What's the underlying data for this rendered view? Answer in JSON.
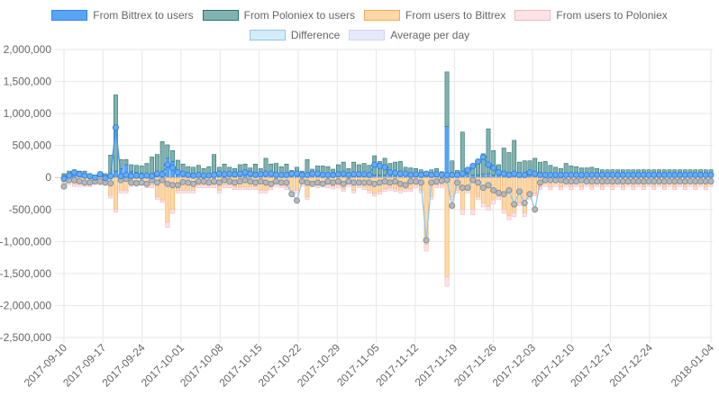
{
  "legend": [
    {
      "label": "From Bittrex to users",
      "fill": "#5aa4f5",
      "stroke": "#2f86e6"
    },
    {
      "label": "From Poloniex to users",
      "fill": "#7fb3b1",
      "stroke": "#2f6f6a"
    },
    {
      "label": "From users to Bittrex",
      "fill": "#fdd8a8",
      "stroke": "#f3a955"
    },
    {
      "label": "From users to Poloniex",
      "fill": "#fde3e5",
      "stroke": "#f2b7bd"
    },
    {
      "label": "Difference",
      "fill": "#d4ebf8",
      "stroke": "#8ec8ea"
    },
    {
      "label": "Average per day",
      "fill": "#e6e9fa",
      "stroke": "#d0d5f2"
    }
  ],
  "chart_data": {
    "type": "bar",
    "title": "",
    "xlabel": "",
    "ylabel": "",
    "ylim": [
      -2500000,
      2000000
    ],
    "y_ticks": [
      "2,000,000",
      "1,500,000",
      "1,000,000",
      "500,000",
      "0",
      "-500,000",
      "-1,000,000",
      "-1,500,000",
      "-2,000,000",
      "-2,500,000"
    ],
    "y_tick_values": [
      2000000,
      1500000,
      1000000,
      500000,
      0,
      -500000,
      -1000000,
      -1500000,
      -2000000,
      -2500000
    ],
    "x_ticks": [
      "2017-09-10",
      "2017-09-17",
      "2017-09-24",
      "2017-10-01",
      "2017-10-08",
      "2017-10-15",
      "2017-10-22",
      "2017-10-29",
      "2017-11-05",
      "2017-11-12",
      "2017-11-19",
      "2017-11-26",
      "2017-12-03",
      "2017-12-10",
      "2017-12-17",
      "2017-12-24",
      "2018-01-04"
    ],
    "x_tick_days": [
      0,
      7,
      14,
      21,
      28,
      35,
      42,
      49,
      56,
      63,
      70,
      77,
      84,
      91,
      98,
      105,
      116
    ],
    "grid": true,
    "legend_position": "top",
    "colors": {
      "bittrex_out": "#5aa4f5",
      "poloniex_out": "#7fb3b1",
      "to_bittrex": "#fdd8a8",
      "to_poloniex": "#fde3e5",
      "difference_line": "#8ec8ea",
      "difference_point": "#a9aeb3",
      "average_point": "#3d8fe8"
    },
    "series": [
      {
        "name": "From Bittrex to users",
        "values": [
          30000,
          50000,
          60000,
          40000,
          40000,
          30000,
          20000,
          40000,
          30000,
          50000,
          100000,
          140000,
          200000,
          90000,
          80000,
          70000,
          60000,
          60000,
          80000,
          100000,
          300000,
          250000,
          90000,
          70000,
          70000,
          50000,
          40000,
          40000,
          50000,
          40000,
          40000,
          70000,
          40000,
          40000,
          50000,
          50000,
          50000,
          40000,
          40000,
          40000,
          50000,
          60000,
          60000,
          50000,
          40000,
          40000,
          40000,
          30000,
          40000,
          70000,
          40000,
          40000,
          40000,
          40000,
          40000,
          40000,
          80000,
          40000,
          40000,
          40000,
          40000,
          40000,
          40000,
          40000,
          40000,
          80000,
          80000,
          60000,
          40000,
          30000,
          30000,
          30000,
          40000,
          30000,
          800000,
          80000,
          50000,
          60000,
          60000,
          40000,
          40000,
          50000,
          60000,
          40000,
          40000,
          40000,
          40000,
          40000,
          40000,
          40000,
          40000,
          40000,
          80000,
          60000,
          40000,
          40000,
          40000,
          40000,
          40000,
          40000,
          70000,
          60000,
          50000,
          80000,
          60000,
          60000,
          60000,
          60000,
          60000,
          60000,
          60000,
          60000,
          60000,
          60000,
          60000,
          60000,
          60000,
          60000,
          60000,
          60000,
          60000,
          60000,
          60000,
          60000,
          60000,
          60000
        ]
      },
      {
        "name": "From Poloniex to users",
        "values": [
          30000,
          50000,
          60000,
          60000,
          60000,
          30000,
          20000,
          50000,
          30000,
          300000,
          1190000,
          140000,
          80000,
          110000,
          110000,
          110000,
          160000,
          260000,
          280000,
          460000,
          210000,
          170000,
          180000,
          140000,
          100000,
          110000,
          150000,
          100000,
          120000,
          320000,
          120000,
          140000,
          120000,
          100000,
          150000,
          160000,
          100000,
          170000,
          100000,
          260000,
          160000,
          160000,
          110000,
          160000,
          70000,
          120000,
          60000,
          250000,
          90000,
          110000,
          140000,
          130000,
          90000,
          160000,
          200000,
          100000,
          160000,
          160000,
          180000,
          150000,
          300000,
          210000,
          260000,
          180000,
          200000,
          170000,
          80000,
          90000,
          100000,
          90000,
          60000,
          90000,
          100000,
          60000,
          850000,
          180000,
          60000,
          650000,
          70000,
          130000,
          230000,
          320000,
          700000,
          380000,
          160000,
          420000,
          350000,
          540000,
          200000,
          220000,
          220000,
          260000,
          160000,
          190000,
          150000,
          120000,
          100000,
          180000,
          140000,
          130000,
          80000,
          90000,
          110000,
          60000,
          60000,
          60000,
          60000,
          60000,
          60000,
          60000,
          60000,
          60000,
          60000,
          60000,
          60000,
          60000,
          60000,
          60000,
          60000,
          60000,
          60000,
          60000,
          60000,
          60000,
          60000,
          60000
        ]
      },
      {
        "name": "From users to Bittrex",
        "values": [
          -100000,
          -80000,
          -100000,
          -100000,
          -100000,
          -100000,
          -80000,
          -90000,
          -80000,
          -280000,
          -500000,
          -200000,
          -200000,
          -100000,
          -80000,
          -80000,
          -120000,
          -120000,
          -300000,
          -350000,
          -700000,
          -500000,
          -200000,
          -200000,
          -200000,
          -200000,
          -120000,
          -120000,
          -120000,
          -120000,
          -200000,
          -120000,
          -120000,
          -150000,
          -150000,
          -150000,
          -150000,
          -150000,
          -200000,
          -200000,
          -150000,
          -100000,
          -120000,
          -150000,
          -200000,
          -200000,
          -100000,
          -300000,
          -100000,
          -120000,
          -100000,
          -120000,
          -140000,
          -120000,
          -180000,
          -100000,
          -200000,
          -120000,
          -150000,
          -200000,
          -250000,
          -220000,
          -180000,
          -160000,
          -180000,
          -200000,
          -180000,
          -180000,
          -120000,
          -200000,
          -1050000,
          -300000,
          -120000,
          -120000,
          -1550000,
          -300000,
          -200000,
          -500000,
          -200000,
          -500000,
          -300000,
          -400000,
          -450000,
          -350000,
          -300000,
          -500000,
          -600000,
          -550000,
          -400000,
          -550000,
          -300000,
          -250000,
          -150000,
          -100000,
          -150000,
          -100000,
          -150000,
          -100000,
          -150000,
          -100000,
          -150000,
          -100000,
          -150000,
          -100000,
          -150000,
          -100000,
          -150000,
          -100000,
          -150000,
          -100000,
          -150000,
          -100000,
          -150000,
          -100000,
          -150000,
          -100000,
          -150000,
          -100000,
          -150000,
          -100000,
          -150000,
          -100000,
          -150000,
          -100000,
          -150000,
          -100000
        ]
      },
      {
        "name": "From users to Poloniex",
        "values": [
          -40000,
          -30000,
          -40000,
          -40000,
          -40000,
          -40000,
          -30000,
          -30000,
          -30000,
          -40000,
          -40000,
          -40000,
          -40000,
          -40000,
          -40000,
          -40000,
          -40000,
          -40000,
          -40000,
          -40000,
          -80000,
          -60000,
          -40000,
          -40000,
          -40000,
          -40000,
          -40000,
          -40000,
          -40000,
          -40000,
          -40000,
          -40000,
          -40000,
          -40000,
          -40000,
          -40000,
          -40000,
          -40000,
          -40000,
          -40000,
          -40000,
          -40000,
          -40000,
          -40000,
          -40000,
          -40000,
          -40000,
          -40000,
          -40000,
          -40000,
          -40000,
          -40000,
          -40000,
          -40000,
          -40000,
          -40000,
          -40000,
          -40000,
          -40000,
          -40000,
          -40000,
          -40000,
          -40000,
          -40000,
          -40000,
          -40000,
          -40000,
          -40000,
          -40000,
          -40000,
          -100000,
          -40000,
          -40000,
          -40000,
          -150000,
          -40000,
          -40000,
          -80000,
          -40000,
          -80000,
          -40000,
          -60000,
          -60000,
          -60000,
          -40000,
          -60000,
          -60000,
          -60000,
          -40000,
          -60000,
          -40000,
          -40000,
          -40000,
          -40000,
          -40000,
          -40000,
          -40000,
          -40000,
          -40000,
          -40000,
          -40000,
          -40000,
          -40000,
          -40000,
          -40000,
          -40000,
          -40000,
          -40000,
          -40000,
          -40000,
          -40000,
          -40000,
          -40000,
          -40000,
          -40000,
          -40000,
          -40000,
          -40000,
          -40000,
          -40000,
          -40000,
          -40000,
          -40000,
          -40000,
          -40000,
          -40000
        ]
      },
      {
        "name": "Difference",
        "values": [
          -140000,
          -40000,
          -40000,
          -60000,
          -80000,
          -80000,
          -60000,
          -60000,
          -80000,
          -90000,
          780000,
          -40000,
          -20000,
          -80000,
          -90000,
          -80000,
          -100000,
          -40000,
          -80000,
          -40000,
          -100000,
          -120000,
          -120000,
          -70000,
          -80000,
          -100000,
          -60000,
          -60000,
          -80000,
          -60000,
          -80000,
          -40000,
          -60000,
          -80000,
          -60000,
          -40000,
          -60000,
          -80000,
          -60000,
          -80000,
          -100000,
          -60000,
          -80000,
          -80000,
          -260000,
          -360000,
          -60000,
          -80000,
          -100000,
          -80000,
          -100000,
          -60000,
          -80000,
          -60000,
          -100000,
          -60000,
          -80000,
          -80000,
          -80000,
          -80000,
          -100000,
          -80000,
          -60000,
          -80000,
          -60000,
          -100000,
          -120000,
          -60000,
          -60000,
          -80000,
          -980000,
          -80000,
          -60000,
          -50000,
          -40000,
          -440000,
          -80000,
          -160000,
          -160000,
          -40000,
          -80000,
          -160000,
          -120000,
          -200000,
          -240000,
          -260000,
          -200000,
          -420000,
          -220000,
          -400000,
          -260000,
          -500000,
          -80000,
          -40000,
          -40000,
          -40000,
          -40000,
          -60000,
          -60000,
          -60000,
          -40000,
          -60000,
          -60000,
          -60000,
          -60000,
          -60000,
          -60000,
          -60000,
          -60000,
          -60000,
          -60000,
          -60000,
          -60000,
          -60000,
          -60000,
          -60000,
          -60000,
          -60000,
          -60000,
          -60000,
          -60000,
          -60000,
          -60000,
          -60000,
          -60000,
          -60000
        ]
      },
      {
        "name": "Average per day",
        "values": [
          -20000,
          30000,
          80000,
          50000,
          30000,
          20000,
          0,
          50000,
          -10000,
          20000,
          780000,
          20000,
          40000,
          20000,
          30000,
          20000,
          30000,
          20000,
          60000,
          50000,
          200000,
          150000,
          80000,
          60000,
          40000,
          30000,
          40000,
          30000,
          30000,
          40000,
          60000,
          50000,
          60000,
          50000,
          60000,
          80000,
          60000,
          40000,
          50000,
          60000,
          60000,
          40000,
          40000,
          40000,
          60000,
          60000,
          40000,
          40000,
          60000,
          60000,
          40000,
          40000,
          40000,
          50000,
          60000,
          40000,
          50000,
          50000,
          50000,
          40000,
          200000,
          180000,
          160000,
          80000,
          70000,
          60000,
          60000,
          40000,
          50000,
          40000,
          60000,
          40000,
          50000,
          40000,
          40000,
          40000,
          40000,
          60000,
          120000,
          180000,
          250000,
          320000,
          200000,
          150000,
          80000,
          60000,
          40000,
          60000,
          40000,
          40000,
          80000,
          60000,
          40000,
          40000,
          40000,
          40000,
          40000,
          40000,
          40000,
          40000,
          40000,
          40000,
          40000,
          40000,
          40000,
          40000,
          40000,
          40000,
          40000,
          40000,
          40000,
          40000,
          40000,
          40000,
          40000,
          40000,
          40000,
          40000,
          40000,
          40000,
          40000,
          40000,
          40000,
          40000,
          40000,
          40000
        ]
      }
    ]
  }
}
